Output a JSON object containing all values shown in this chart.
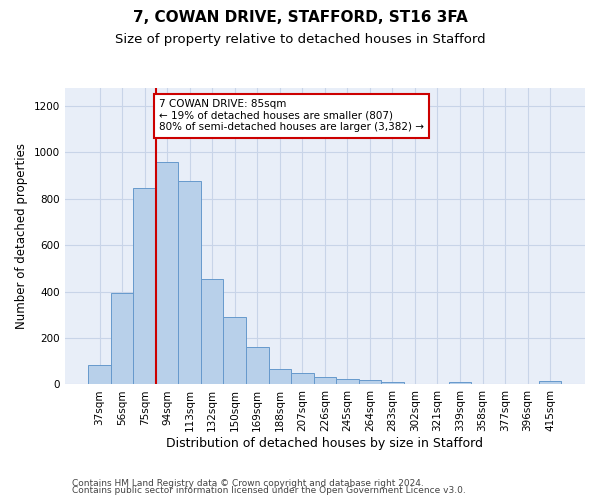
{
  "title": "7, COWAN DRIVE, STAFFORD, ST16 3FA",
  "subtitle": "Size of property relative to detached houses in Stafford",
  "xlabel": "Distribution of detached houses by size in Stafford",
  "ylabel": "Number of detached properties",
  "categories": [
    "37sqm",
    "56sqm",
    "75sqm",
    "94sqm",
    "113sqm",
    "132sqm",
    "150sqm",
    "169sqm",
    "188sqm",
    "207sqm",
    "226sqm",
    "245sqm",
    "264sqm",
    "283sqm",
    "302sqm",
    "321sqm",
    "339sqm",
    "358sqm",
    "377sqm",
    "396sqm",
    "415sqm"
  ],
  "values": [
    85,
    395,
    845,
    960,
    875,
    455,
    290,
    160,
    65,
    50,
    30,
    25,
    18,
    10,
    0,
    0,
    10,
    0,
    0,
    0,
    15
  ],
  "bar_color": "#b8d0ea",
  "bar_edge_color": "#6699cc",
  "vline_color": "#cc0000",
  "vline_x_index": 2.5,
  "annotation_text": "7 COWAN DRIVE: 85sqm\n← 19% of detached houses are smaller (807)\n80% of semi-detached houses are larger (3,382) →",
  "annotation_box_color": "#ffffff",
  "annotation_box_edge_color": "#cc0000",
  "ylim": [
    0,
    1280
  ],
  "yticks": [
    0,
    200,
    400,
    600,
    800,
    1000,
    1200
  ],
  "grid_color": "#c8d4e8",
  "bg_color": "#e8eef8",
  "footer1": "Contains HM Land Registry data © Crown copyright and database right 2024.",
  "footer2": "Contains public sector information licensed under the Open Government Licence v3.0.",
  "title_fontsize": 11,
  "subtitle_fontsize": 9.5,
  "xlabel_fontsize": 9,
  "ylabel_fontsize": 8.5,
  "tick_fontsize": 7.5,
  "annotation_fontsize": 7.5,
  "footer_fontsize": 6.5
}
